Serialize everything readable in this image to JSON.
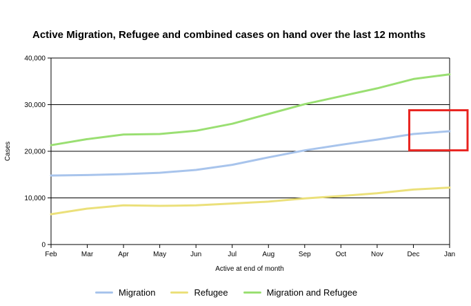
{
  "colors": {
    "migration": "#a8c4ec",
    "refugee": "#ebe07a",
    "combined": "#9adf72",
    "highlight_box": "#e8231f",
    "gridline": "#000000"
  },
  "chart_data": {
    "type": "line",
    "title": "Active Migration, Refugee and combined cases on hand over the last 12 months",
    "xlabel": "Active at end of month",
    "ylabel": "Cases",
    "categories": [
      "Feb",
      "Mar",
      "Apr",
      "May",
      "Jun",
      "Jul",
      "Aug",
      "Sep",
      "Oct",
      "Nov",
      "Dec",
      "Jan"
    ],
    "ylim": [
      0,
      40000
    ],
    "yticks": [
      0,
      10000,
      20000,
      30000,
      40000
    ],
    "ytick_labels": [
      "0",
      "10,000",
      "20,000",
      "30,000",
      "40,000"
    ],
    "grid": "horizontal",
    "legend_position": "bottom",
    "series": [
      {
        "name": "Migration",
        "color_key": "migration",
        "values": [
          14800,
          14900,
          15100,
          15400,
          16000,
          17100,
          18700,
          20200,
          21400,
          22500,
          23700,
          24300
        ]
      },
      {
        "name": "Refugee",
        "color_key": "refugee",
        "values": [
          6500,
          7700,
          8400,
          8300,
          8400,
          8800,
          9200,
          9900,
          10400,
          11000,
          11800,
          12200
        ]
      },
      {
        "name": "Migration and Refugee",
        "color_key": "combined",
        "values": [
          21300,
          22600,
          23600,
          23700,
          24400,
          25900,
          28000,
          30100,
          31800,
          33500,
          35500,
          36500
        ]
      }
    ],
    "annotations": [
      {
        "type": "highlight-box",
        "color_key": "highlight_box",
        "x_range": [
          "Dec",
          "Jan"
        ],
        "y_range": [
          20200,
          28800
        ]
      }
    ]
  }
}
